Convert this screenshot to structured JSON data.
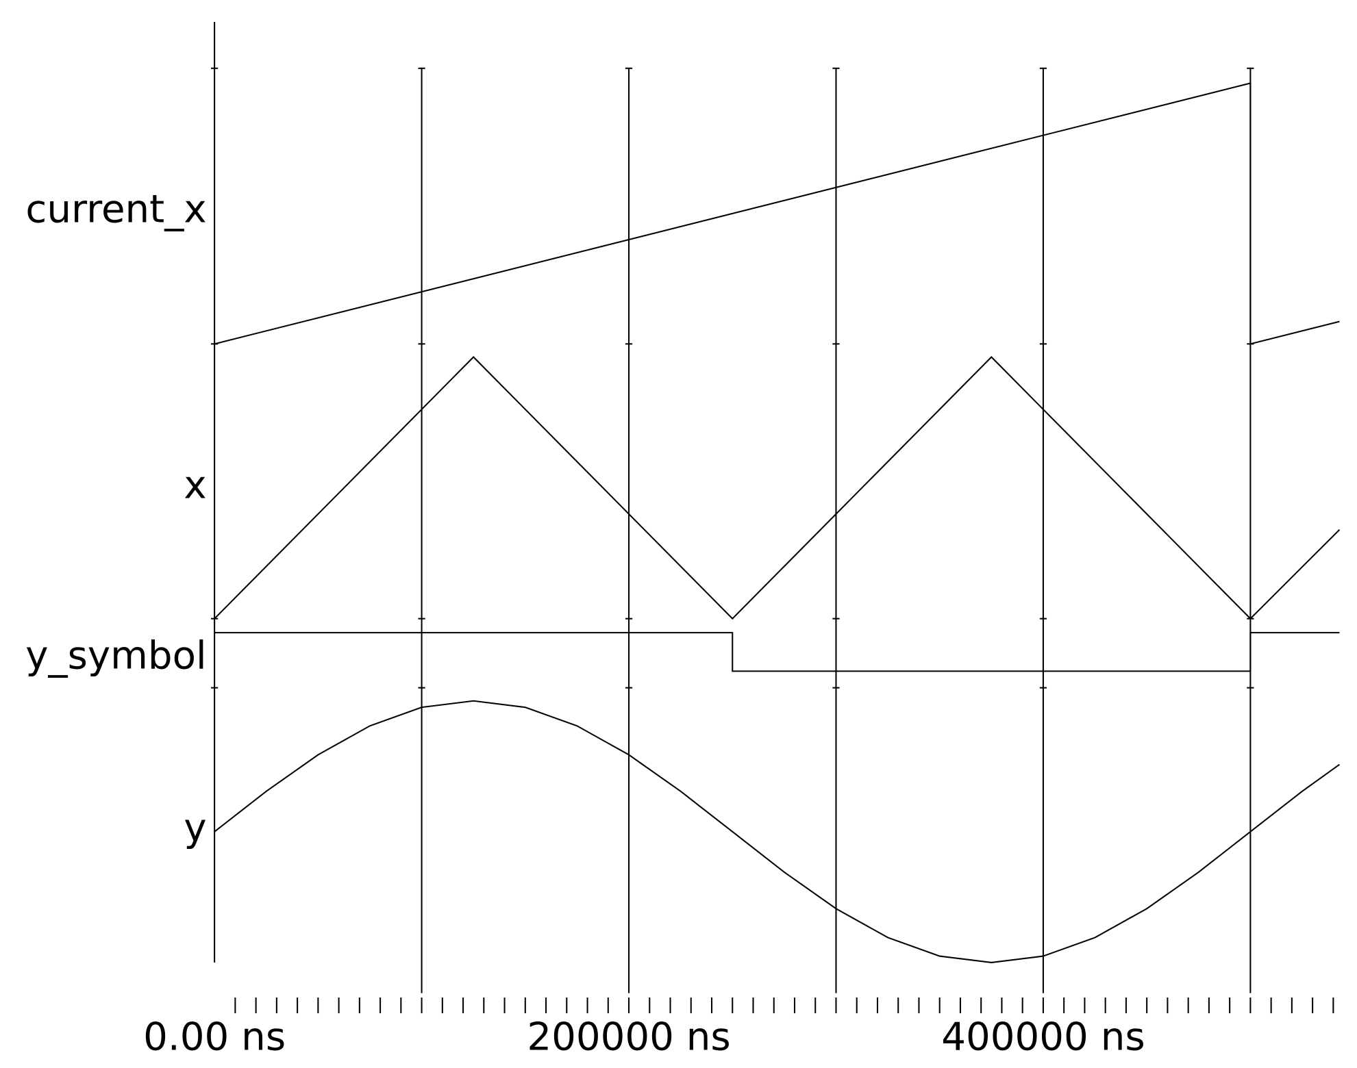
{
  "chart_data": {
    "type": "line",
    "xlim": [
      0,
      543000
    ],
    "xticks": [
      {
        "value": 0,
        "label": "0.00 ns"
      },
      {
        "value": 200000,
        "label": "200000 ns"
      },
      {
        "value": 400000,
        "label": "400000 ns"
      }
    ],
    "x_grid": [
      0,
      100000,
      200000,
      300000,
      400000,
      500000
    ],
    "minor_xtick_step": 10000,
    "series": [
      {
        "name": "current_x",
        "color": "#000000",
        "ylim": [
          0,
          1
        ],
        "x": [
          0,
          500000,
          500000,
          543000
        ],
        "values": [
          0,
          1,
          0,
          0.086
        ]
      },
      {
        "name": "x",
        "color": "#000000",
        "ylim": [
          0,
          1
        ],
        "x": [
          0,
          125000,
          250000,
          375000,
          500000,
          543000
        ],
        "values": [
          0,
          1,
          0,
          1,
          0,
          0.34
        ]
      },
      {
        "name": "y_symbol",
        "color": "#000000",
        "ylim": [
          0,
          1
        ],
        "step": true,
        "x": [
          0,
          250000,
          500000,
          543000
        ],
        "values": [
          1,
          0,
          1,
          1
        ]
      },
      {
        "name": "y",
        "color": "#000000",
        "ylim": [
          -1,
          1
        ],
        "x": [
          0,
          25000,
          50000,
          75000,
          100000,
          125000,
          150000,
          175000,
          200000,
          225000,
          250000,
          275000,
          300000,
          325000,
          350000,
          375000,
          400000,
          425000,
          450000,
          475000,
          500000,
          525000,
          543000
        ],
        "values": [
          0,
          0.309,
          0.588,
          0.809,
          0.951,
          1,
          0.951,
          0.809,
          0.588,
          0.309,
          0,
          -0.309,
          -0.588,
          -0.809,
          -0.951,
          -1,
          -0.951,
          -0.809,
          -0.588,
          -0.309,
          0,
          0.309,
          0.514
        ]
      }
    ]
  }
}
